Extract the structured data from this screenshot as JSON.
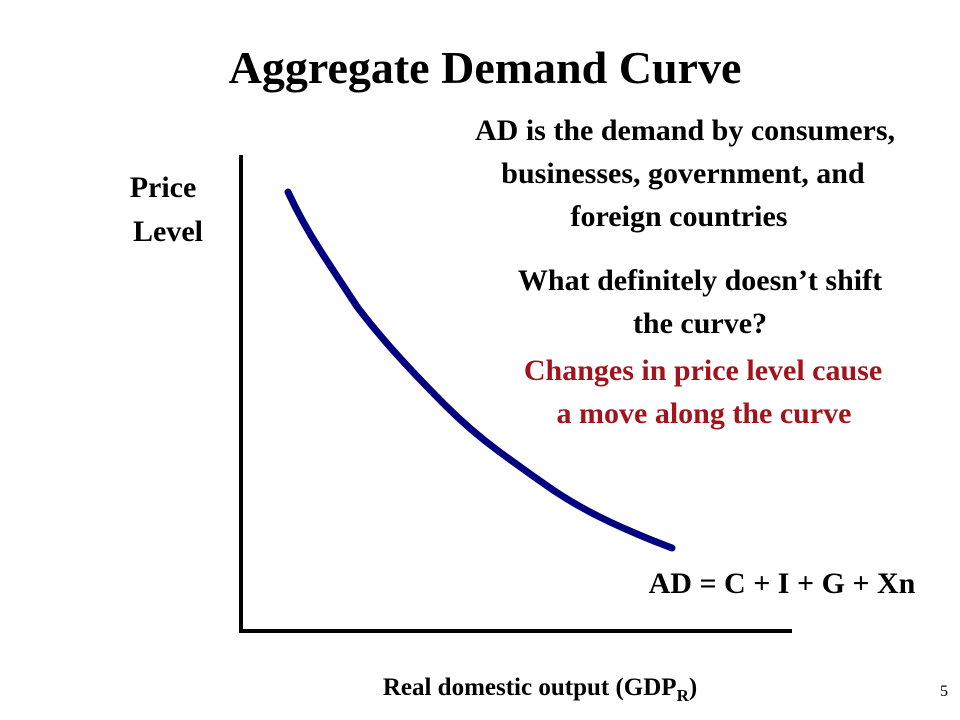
{
  "title": "Aggregate Demand Curve",
  "y_axis_label": [
    "Price",
    "Level"
  ],
  "x_axis_label": {
    "text": "Real domestic output (GDP",
    "subscript": "R",
    "closing": ")"
  },
  "definition": [
    "AD is the demand by consumers,",
    "businesses, government, and",
    "foreign countries"
  ],
  "question": [
    "What definitely doesn’t shift",
    "the curve?"
  ],
  "answer": [
    "Changes in price level cause",
    "a move along the curve"
  ],
  "curve_label": "AD = C + I + G + Xn",
  "page_number": "5"
}
